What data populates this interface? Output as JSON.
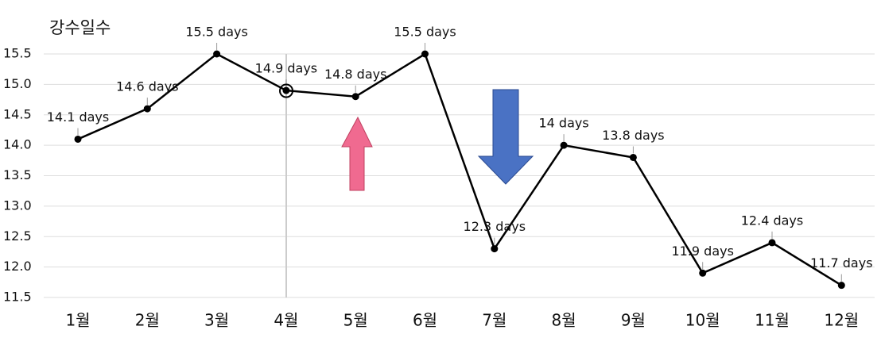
{
  "chart_data": {
    "type": "line",
    "title": "강수일수",
    "categories": [
      "1월",
      "2월",
      "3월",
      "4월",
      "5월",
      "6월",
      "7월",
      "8월",
      "9월",
      "10월",
      "11월",
      "12월"
    ],
    "values": [
      14.1,
      14.6,
      15.5,
      14.9,
      14.8,
      15.5,
      12.3,
      14,
      13.8,
      11.9,
      12.4,
      11.7
    ],
    "value_labels": [
      "14.1 days",
      "14.6 days",
      "15.5 days",
      "14.9 days",
      "14.8 days",
      "15.5 days",
      "12.3 days",
      "14 days",
      "13.8 days",
      "11.9 days",
      "12.4 days",
      "11.7 days"
    ],
    "color": "#000000",
    "ylim": [
      11.5,
      15.5
    ],
    "yticks": [
      11.5,
      {
        "value": 12,
        "label": "12.0"
      },
      12.5,
      {
        "value": 13,
        "label": "13.0"
      },
      13.5,
      {
        "value": 14,
        "label": "14.0"
      },
      14.5,
      {
        "value": 15,
        "label": "15.0"
      },
      15.5
    ],
    "grid": true
  }
}
